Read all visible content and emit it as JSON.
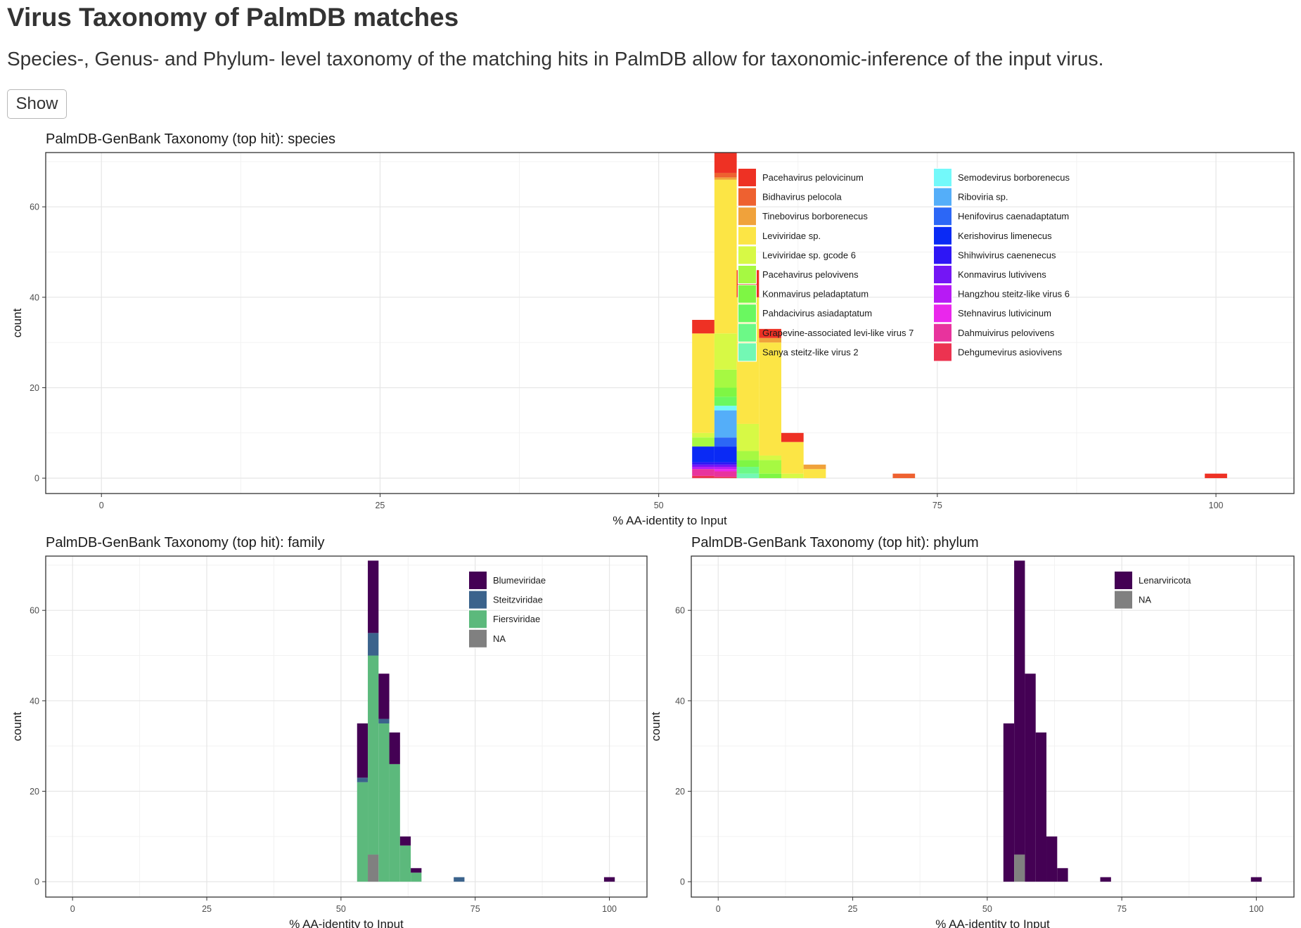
{
  "page": {
    "title": "Virus Taxonomy of PalmDB matches",
    "subtitle": "Species-, Genus- and Phylum- level taxonomy of the matching hits in PalmDB allow for taxonomic-inference of the input virus.",
    "show_button": "Show"
  },
  "chart_data": [
    {
      "type": "bar",
      "stacked": true,
      "title": "PalmDB-GenBank Taxonomy (top hit): species",
      "xlabel": "% AA-identity to Input",
      "ylabel": "count",
      "xlim": [
        -5,
        107
      ],
      "ylim": [
        -3.4,
        72
      ],
      "xticks": [
        0,
        25,
        50,
        75,
        100
      ],
      "yticks": [
        0,
        20,
        40,
        60
      ],
      "bin_width": 2,
      "grid": true,
      "legend_position": "top-right",
      "legend_columns": 2,
      "categories": [
        "Pacehavirus pelovicinum",
        "Bidhavirus pelocola",
        "Tinebovirus borborenecus",
        "Leviviridae sp.",
        "Leviviridae sp. gcode 6",
        "Pacehavirus pelovivens",
        "Konmavirus peladaptatum",
        "Pahdacivirus asiadaptatum",
        "Grapevine-associated levi-like virus 7",
        "Sanya steitz-like virus 2",
        "Semodevirus borborenecus",
        "Riboviria sp.",
        "Henifovirus caenadaptatum",
        "Kerishovirus limenecus",
        "Shihwivirus caenenecus",
        "Konmavirus lutivivens",
        "Hangzhou steitz-like virus 6",
        "Stehnavirus lutivicinum",
        "Dahmuivirus pelovivens",
        "Dehgumevirus asiovivens"
      ],
      "colors": [
        "#ee3124",
        "#ee6130",
        "#f0a23b",
        "#fce545",
        "#d7f945",
        "#a6f942",
        "#7ef644",
        "#6af860",
        "#6cf987",
        "#73f8b4",
        "#73f9fa",
        "#54aef9",
        "#2c67f6",
        "#0a2af5",
        "#2e16f5",
        "#7416f5",
        "#b71af5",
        "#ea27ec",
        "#e8339d",
        "#ec3350"
      ],
      "bins": [
        {
          "x": 54,
          "segments": [
            [
              "Dehgumevirus asiovivens",
              0.5
            ],
            [
              "Dahmuivirus pelovivens",
              1.5
            ],
            [
              "Hangzhou steitz-like virus 6",
              0.5
            ],
            [
              "Konmavirus lutivivens",
              0.5
            ],
            [
              "Shihwivirus caenenecus",
              0.5
            ],
            [
              "Kerishovirus limenecus",
              3.5
            ],
            [
              "Pacehavirus pelovivens",
              2
            ],
            [
              "Leviviridae sp. gcode 6",
              1
            ],
            [
              "Leviviridae sp.",
              22
            ],
            [
              "Pacehavirus pelovicinum",
              3
            ]
          ]
        },
        {
          "x": 56,
          "segments": [
            [
              "Dehgumevirus asiovivens",
              0.3
            ],
            [
              "Dahmuivirus pelovivens",
              1.2
            ],
            [
              "Stehnavirus lutivicinum",
              0.5
            ],
            [
              "Hangzhou steitz-like virus 6",
              0.5
            ],
            [
              "Konmavirus lutivivens",
              0.5
            ],
            [
              "Shihwivirus caenenecus",
              0.5
            ],
            [
              "Kerishovirus limenecus",
              3.5
            ],
            [
              "Henifovirus caenadaptatum",
              2
            ],
            [
              "Riboviria sp.",
              6
            ],
            [
              "Semodevirus borborenecus",
              1
            ],
            [
              "Pahdacivirus asiadaptatum",
              2
            ],
            [
              "Konmavirus peladaptatum",
              2
            ],
            [
              "Pacehavirus pelovivens",
              4
            ],
            [
              "Leviviridae sp. gcode 6",
              8
            ],
            [
              "Leviviridae sp.",
              34
            ],
            [
              "Tinebovirus borborenecus",
              0.5
            ],
            [
              "Bidhavirus pelocola",
              1
            ],
            [
              "Pacehavirus pelovicinum",
              4.5
            ]
          ]
        },
        {
          "x": 58,
          "segments": [
            [
              "Sanya steitz-like virus 2",
              1
            ],
            [
              "Grapevine-associated levi-like virus 7",
              1.5
            ],
            [
              "Konmavirus peladaptatum",
              1.5
            ],
            [
              "Pacehavirus pelovivens",
              2
            ],
            [
              "Leviviridae sp. gcode 6",
              6
            ],
            [
              "Leviviridae sp.",
              28
            ],
            [
              "Pacehavirus pelovicinum",
              6
            ]
          ]
        },
        {
          "x": 60,
          "segments": [
            [
              "Konmavirus peladaptatum",
              1
            ],
            [
              "Pacehavirus pelovivens",
              3
            ],
            [
              "Leviviridae sp. gcode 6",
              1
            ],
            [
              "Leviviridae sp.",
              25
            ],
            [
              "Tinebovirus borborenecus",
              1
            ],
            [
              "Pacehavirus pelovicinum",
              2
            ]
          ]
        },
        {
          "x": 62,
          "segments": [
            [
              "Leviviridae sp. gcode 6",
              1
            ],
            [
              "Leviviridae sp.",
              7
            ],
            [
              "Pacehavirus pelovicinum",
              2
            ]
          ]
        },
        {
          "x": 64,
          "segments": [
            [
              "Leviviridae sp.",
              2
            ],
            [
              "Tinebovirus borborenecus",
              1
            ]
          ]
        },
        {
          "x": 72,
          "segments": [
            [
              "Bidhavirus pelocola",
              1
            ]
          ]
        },
        {
          "x": 100,
          "segments": [
            [
              "Pacehavirus pelovicinum",
              1
            ]
          ]
        }
      ]
    },
    {
      "type": "bar",
      "stacked": true,
      "title": "PalmDB-GenBank Taxonomy (top hit): family",
      "xlabel": "% AA-identity to Input",
      "ylabel": "count",
      "xlim": [
        -5,
        107
      ],
      "ylim": [
        -3.4,
        72
      ],
      "xticks": [
        0,
        25,
        50,
        75,
        100
      ],
      "yticks": [
        0,
        20,
        40,
        60
      ],
      "bin_width": 2,
      "grid": true,
      "legend_position": "top-right",
      "legend_columns": 1,
      "categories": [
        "Blumeviridae",
        "Steitzviridae",
        "Fiersviridae",
        "NA"
      ],
      "colors": [
        "#440154",
        "#3b638c",
        "#5cb97c",
        "#808080"
      ],
      "bins": [
        {
          "x": 54,
          "segments": [
            [
              "Fiersviridae",
              22
            ],
            [
              "Steitzviridae",
              1
            ],
            [
              "Blumeviridae",
              12
            ]
          ]
        },
        {
          "x": 56,
          "segments": [
            [
              "NA",
              6
            ],
            [
              "Fiersviridae",
              44
            ],
            [
              "Steitzviridae",
              5
            ],
            [
              "Blumeviridae",
              16
            ]
          ]
        },
        {
          "x": 58,
          "segments": [
            [
              "Fiersviridae",
              35
            ],
            [
              "Steitzviridae",
              1
            ],
            [
              "Blumeviridae",
              10
            ]
          ]
        },
        {
          "x": 60,
          "segments": [
            [
              "Fiersviridae",
              26
            ],
            [
              "Blumeviridae",
              7
            ]
          ]
        },
        {
          "x": 62,
          "segments": [
            [
              "Fiersviridae",
              8
            ],
            [
              "Blumeviridae",
              2
            ]
          ]
        },
        {
          "x": 64,
          "segments": [
            [
              "Fiersviridae",
              2
            ],
            [
              "Blumeviridae",
              1
            ]
          ]
        },
        {
          "x": 72,
          "segments": [
            [
              "Steitzviridae",
              1
            ]
          ]
        },
        {
          "x": 100,
          "segments": [
            [
              "Blumeviridae",
              1
            ]
          ]
        }
      ]
    },
    {
      "type": "bar",
      "stacked": true,
      "title": "PalmDB-GenBank Taxonomy (top hit): phylum",
      "xlabel": "% AA-identity to Input",
      "ylabel": "count",
      "xlim": [
        -5,
        107
      ],
      "ylim": [
        -3.4,
        72
      ],
      "xticks": [
        0,
        25,
        50,
        75,
        100
      ],
      "yticks": [
        0,
        20,
        40,
        60
      ],
      "bin_width": 2,
      "grid": true,
      "legend_position": "top-right",
      "legend_columns": 1,
      "categories": [
        "Lenarviricota",
        "NA"
      ],
      "colors": [
        "#440154",
        "#808080"
      ],
      "bins": [
        {
          "x": 54,
          "segments": [
            [
              "Lenarviricota",
              35
            ]
          ]
        },
        {
          "x": 56,
          "segments": [
            [
              "NA",
              6
            ],
            [
              "Lenarviricota",
              65
            ]
          ]
        },
        {
          "x": 58,
          "segments": [
            [
              "Lenarviricota",
              46
            ]
          ]
        },
        {
          "x": 60,
          "segments": [
            [
              "Lenarviricota",
              33
            ]
          ]
        },
        {
          "x": 62,
          "segments": [
            [
              "Lenarviricota",
              10
            ]
          ]
        },
        {
          "x": 64,
          "segments": [
            [
              "Lenarviricota",
              3
            ]
          ]
        },
        {
          "x": 72,
          "segments": [
            [
              "Lenarviricota",
              1
            ]
          ]
        },
        {
          "x": 100,
          "segments": [
            [
              "Lenarviricota",
              1
            ]
          ]
        }
      ]
    }
  ]
}
